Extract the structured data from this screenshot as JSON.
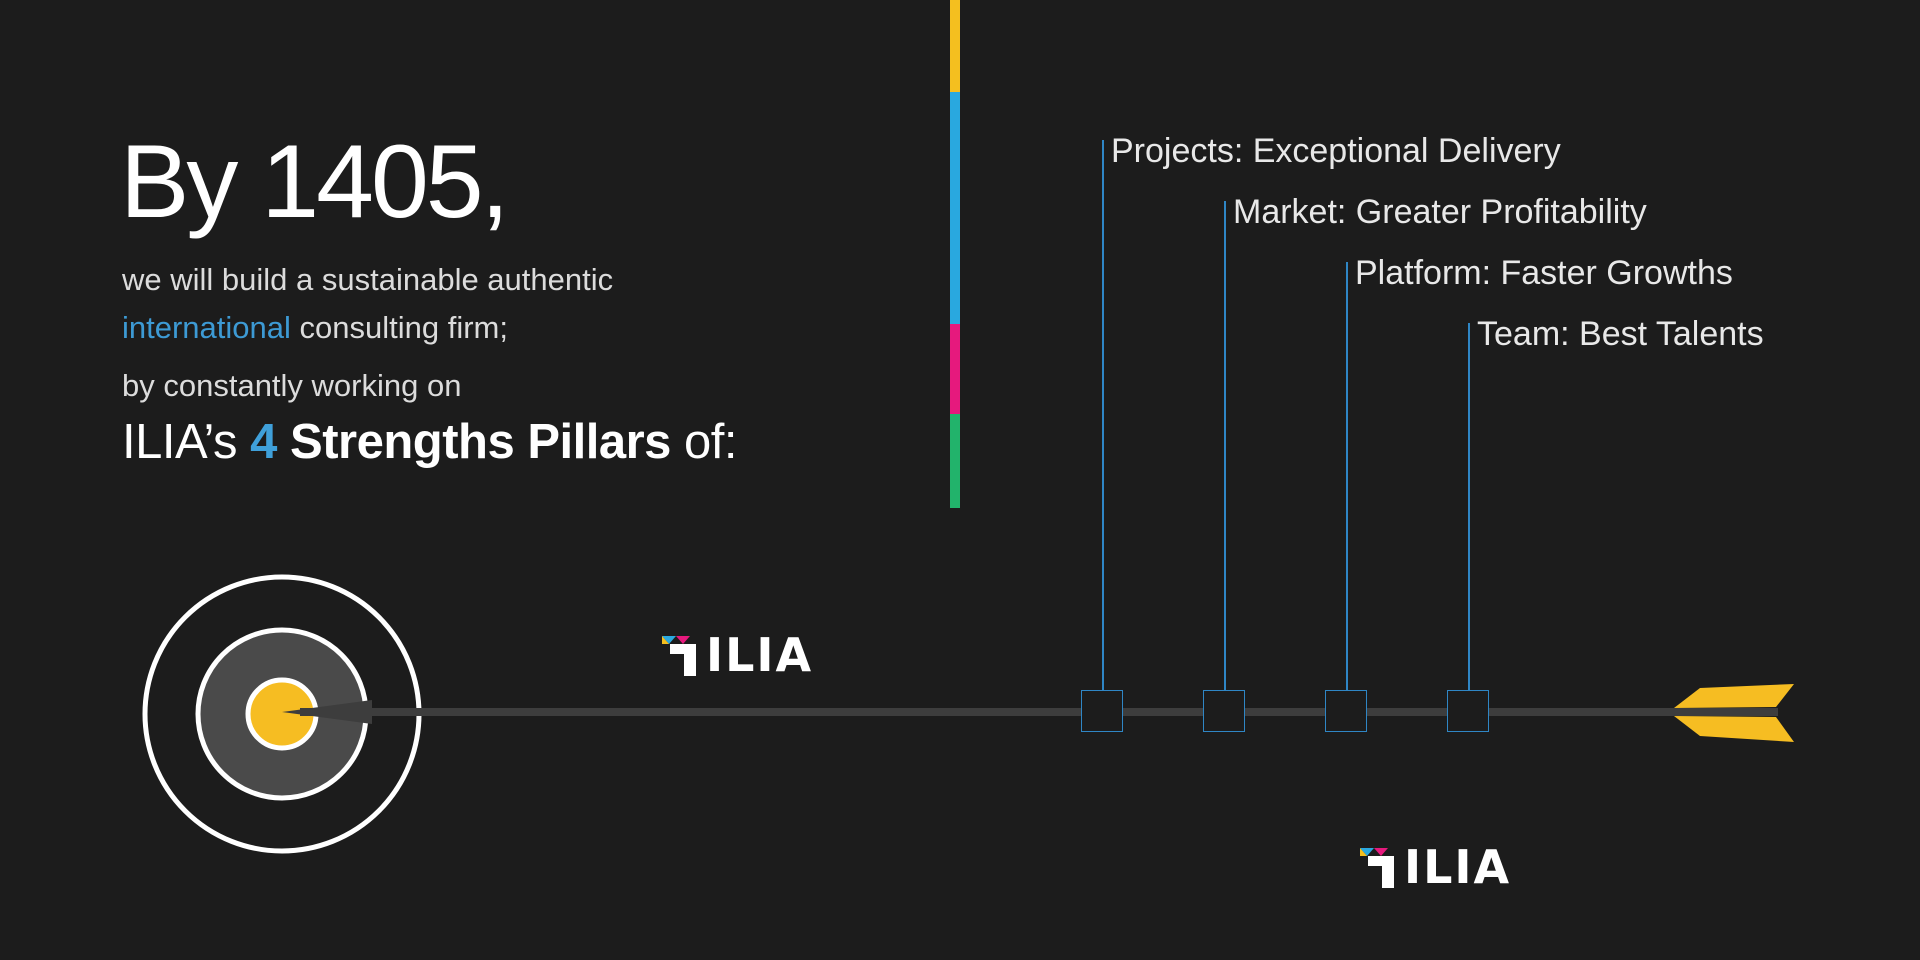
{
  "headline": "By 1405,",
  "body": {
    "line1": "we will build a sustainable authentic",
    "line2_accent": "international",
    "line2_rest": " consulting firm;",
    "line3": "by constantly working on",
    "pillars_prefix": "ILIA’s ",
    "pillars_number": "4",
    "pillars_bold": " Strengths Pillars",
    "pillars_suffix": " of:"
  },
  "pillars": [
    {
      "label": "Projects: Exceptional Delivery"
    },
    {
      "label": "Market: Greater Profitability"
    },
    {
      "label": "Platform: Faster Growths"
    },
    {
      "label": "Team: Best Talents"
    }
  ],
  "color_bar": [
    "#f4bf1f",
    "#29a8df",
    "#e6197d",
    "#22b36b"
  ],
  "logo_text": "ILIA",
  "colors": {
    "background": "#1c1c1c",
    "accent_blue": "#3d9ad4",
    "arrow_yellow": "#f6bd22",
    "target_center": "#f6bd22"
  }
}
